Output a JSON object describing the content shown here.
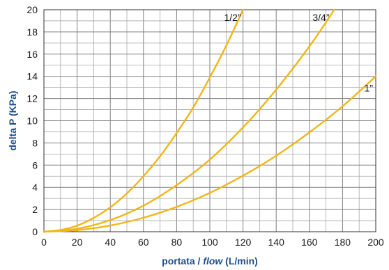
{
  "chart_data": {
    "type": "line",
    "xlabel_prefix": "portata / ",
    "xlabel_italic": "flow",
    "xlabel_suffix": " (L/min)",
    "ylabel": "delta P (KPa)",
    "xlim": [
      0,
      200
    ],
    "ylim": [
      0,
      20
    ],
    "x_ticks": [
      "0",
      "20",
      "40",
      "60",
      "80",
      "100",
      "120",
      "140",
      "160",
      "180",
      "200"
    ],
    "y_ticks": [
      "0",
      "2",
      "4",
      "6",
      "8",
      "10",
      "12",
      "14",
      "16",
      "18",
      "20"
    ],
    "grid": true,
    "x_minor_step": 10,
    "y_minor_step": 1,
    "series_color": "#f2b51a",
    "series": [
      {
        "name": "1/2”",
        "x": [
          0,
          10,
          20,
          30,
          40,
          50,
          60,
          70,
          80,
          90,
          100,
          110,
          120
        ],
        "y": [
          0,
          0.15,
          0.55,
          1.25,
          2.2,
          3.45,
          5.0,
          6.8,
          8.9,
          11.2,
          13.9,
          16.8,
          20
        ]
      },
      {
        "name": "3/4”",
        "x": [
          0,
          20,
          40,
          60,
          80,
          100,
          120,
          140,
          160,
          175
        ],
        "y": [
          0,
          0.27,
          1.05,
          2.35,
          4.2,
          6.5,
          9.4,
          12.8,
          16.7,
          20
        ]
      },
      {
        "name": "1”",
        "x": [
          0,
          20,
          40,
          60,
          80,
          100,
          120,
          140,
          160,
          180,
          200
        ],
        "y": [
          0,
          0.14,
          0.56,
          1.26,
          2.24,
          3.5,
          5.05,
          6.85,
          8.95,
          11.3,
          14
        ]
      }
    ]
  }
}
